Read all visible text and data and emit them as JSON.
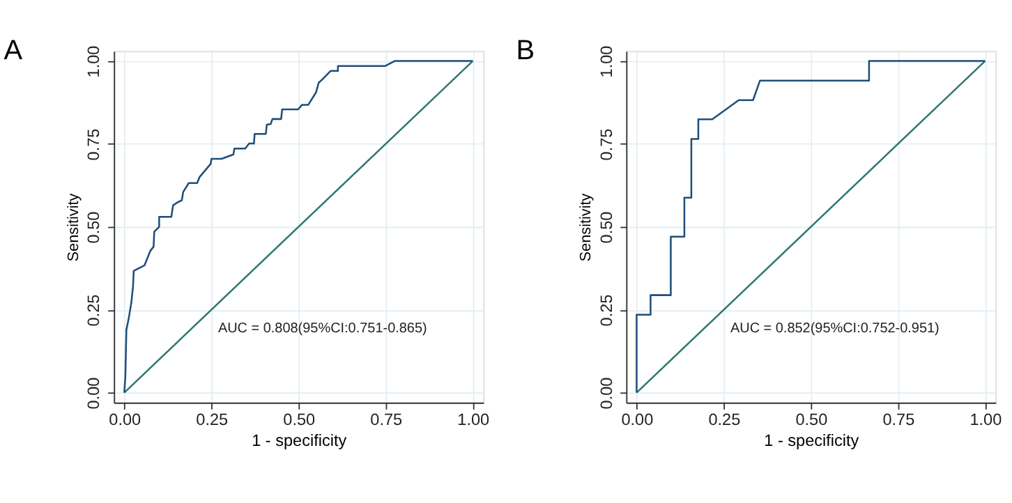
{
  "chart_data": [
    {
      "type": "line",
      "title": "A",
      "xlabel": "1 - specificity",
      "ylabel": "Sensitivity",
      "annotations": [
        "AUC = 0.808(95%CI:0.751-0.865)"
      ],
      "xlim": [
        -0.03,
        1.03
      ],
      "ylim": [
        -0.03,
        1.03
      ],
      "xticks": [
        {
          "value": 0,
          "label": "0.00"
        },
        {
          "value": 0.25,
          "label": "0.25"
        },
        {
          "value": 0.5,
          "label": "0.50"
        },
        {
          "value": 0.75,
          "label": "0.75"
        },
        {
          "value": 1,
          "label": "1.00"
        }
      ],
      "yticks": [
        {
          "value": 0,
          "label": "0.00"
        },
        {
          "value": 0.25,
          "label": "0.25"
        },
        {
          "value": 0.5,
          "label": "0.50"
        },
        {
          "value": 0.75,
          "label": "0.75"
        },
        {
          "value": 1,
          "label": "1.00"
        }
      ],
      "grid": true,
      "series": [
        {
          "color": "#2e7872",
          "x": [
            0,
            1
          ],
          "values": [
            0,
            1
          ]
        },
        {
          "color": "#1f4e7a",
          "x": [
            0,
            0.003,
            0.006,
            0.012,
            0.02,
            0.025,
            0.027,
            0.058,
            0.075,
            0.084,
            0.086,
            0.1,
            0.1,
            0.135,
            0.14,
            0.155,
            0.165,
            0.169,
            0.185,
            0.209,
            0.216,
            0.248,
            0.25,
            0.279,
            0.313,
            0.316,
            0.347,
            0.358,
            0.372,
            0.374,
            0.406,
            0.409,
            0.42,
            0.425,
            0.45,
            0.453,
            0.499,
            0.51,
            0.528,
            0.55,
            0.558,
            0.563,
            0.592,
            0.613,
            0.613,
            0.749,
            0.776,
            1
          ],
          "values": [
            0,
            0.048,
            0.19,
            0.22,
            0.27,
            0.32,
            0.367,
            0.384,
            0.428,
            0.44,
            0.485,
            0.5,
            0.53,
            0.53,
            0.565,
            0.575,
            0.58,
            0.605,
            0.632,
            0.632,
            0.65,
            0.69,
            0.705,
            0.705,
            0.718,
            0.736,
            0.736,
            0.751,
            0.751,
            0.78,
            0.78,
            0.808,
            0.81,
            0.825,
            0.825,
            0.854,
            0.854,
            0.868,
            0.868,
            0.905,
            0.935,
            0.939,
            0.97,
            0.97,
            0.985,
            0.985,
            1,
            1
          ]
        }
      ]
    },
    {
      "type": "line",
      "title": "B",
      "xlabel": "1 - specificity",
      "ylabel": "Sensitivity",
      "annotations": [
        "AUC = 0.852(95%CI:0.752-0.951)"
      ],
      "xlim": [
        -0.03,
        1.03
      ],
      "ylim": [
        -0.03,
        1.03
      ],
      "xticks": [
        {
          "value": 0,
          "label": "0.00"
        },
        {
          "value": 0.25,
          "label": "0.25"
        },
        {
          "value": 0.5,
          "label": "0.50"
        },
        {
          "value": 0.75,
          "label": "0.75"
        },
        {
          "value": 1,
          "label": "1.00"
        }
      ],
      "yticks": [
        {
          "value": 0,
          "label": "0.00"
        },
        {
          "value": 0.25,
          "label": "0.25"
        },
        {
          "value": 0.5,
          "label": "0.50"
        },
        {
          "value": 0.75,
          "label": "0.75"
        },
        {
          "value": 1,
          "label": "1.00"
        }
      ],
      "grid": true,
      "series": [
        {
          "color": "#2e7872",
          "x": [
            0,
            1
          ],
          "values": [
            0,
            1
          ]
        },
        {
          "color": "#1f4e7a",
          "x": [
            0,
            0,
            0.04,
            0.04,
            0.098,
            0.098,
            0.137,
            0.137,
            0.157,
            0.157,
            0.177,
            0.177,
            0.217,
            0.293,
            0.334,
            0.354,
            0.667,
            0.667,
            1
          ],
          "values": [
            0,
            0.235,
            0.235,
            0.294,
            0.294,
            0.47,
            0.47,
            0.588,
            0.588,
            0.765,
            0.765,
            0.824,
            0.824,
            0.882,
            0.882,
            0.941,
            0.941,
            1,
            1
          ]
        }
      ]
    }
  ]
}
